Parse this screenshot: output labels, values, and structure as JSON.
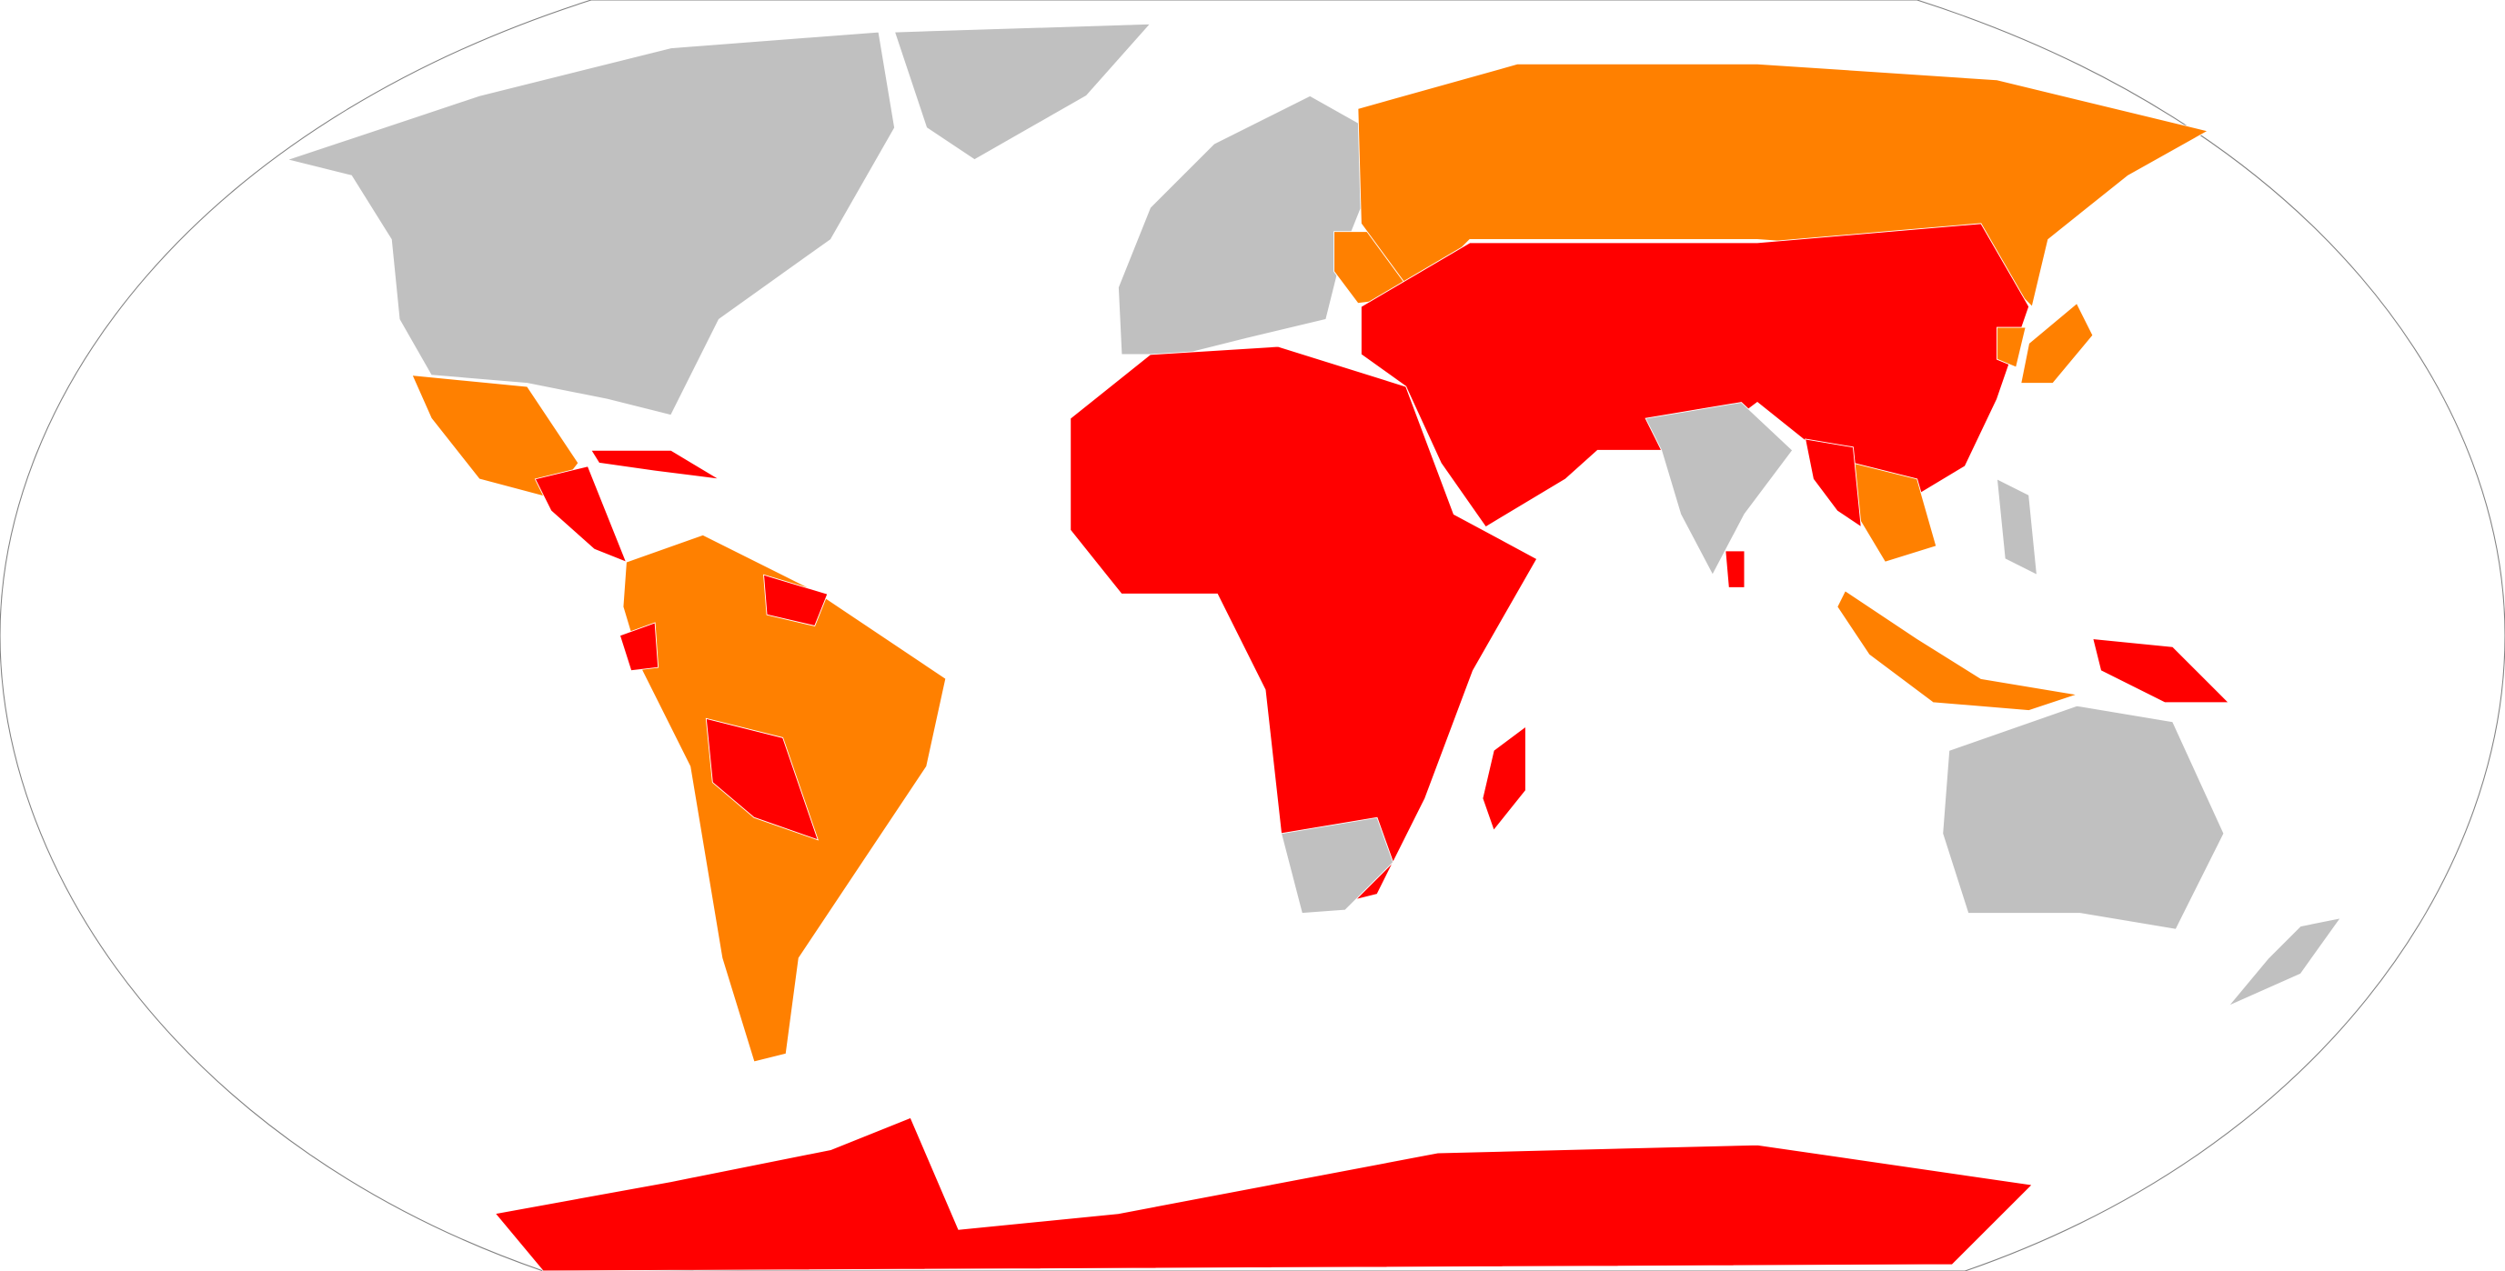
{
  "map": {
    "projection": "Robinson",
    "colors": {
      "gray": "#c0c0c0",
      "orange": "#ff8000",
      "red": "#ff0000",
      "border": "#ffffff",
      "frame": "#808080",
      "ocean": "#ffffff"
    },
    "regions": [
      {
        "name": "north-america",
        "category": "gray"
      },
      {
        "name": "greenland",
        "category": "gray"
      },
      {
        "name": "mexico",
        "category": "orange"
      },
      {
        "name": "central-america",
        "category": "red"
      },
      {
        "name": "caribbean",
        "category": "red"
      },
      {
        "name": "south-america",
        "category": "orange"
      },
      {
        "name": "bolivia",
        "category": "red"
      },
      {
        "name": "ecuador",
        "category": "red"
      },
      {
        "name": "guianas",
        "category": "red"
      },
      {
        "name": "europe",
        "category": "gray"
      },
      {
        "name": "ukraine-region",
        "category": "orange"
      },
      {
        "name": "russia",
        "category": "orange"
      },
      {
        "name": "asia-middle-east-china",
        "category": "red"
      },
      {
        "name": "india",
        "category": "gray"
      },
      {
        "name": "southeast-asia-mainland",
        "category": "orange"
      },
      {
        "name": "myanmar",
        "category": "red"
      },
      {
        "name": "japan",
        "category": "orange"
      },
      {
        "name": "korea",
        "category": "orange"
      },
      {
        "name": "africa",
        "category": "red"
      },
      {
        "name": "southern-africa",
        "category": "gray"
      },
      {
        "name": "madagascar",
        "category": "red"
      },
      {
        "name": "sri-lanka",
        "category": "red"
      },
      {
        "name": "indonesia",
        "category": "orange"
      },
      {
        "name": "philippines",
        "category": "gray"
      },
      {
        "name": "papua-new-guinea",
        "category": "red"
      },
      {
        "name": "australia",
        "category": "gray"
      },
      {
        "name": "new-zealand",
        "category": "gray"
      },
      {
        "name": "antarctica",
        "category": "red"
      }
    ]
  }
}
